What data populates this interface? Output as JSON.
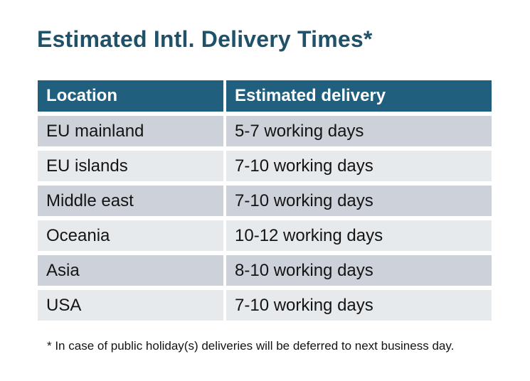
{
  "page": {
    "title": "Estimated Intl. Delivery Times*",
    "footnote": "* In case of public holiday(s) deliveries will be deferred to next business day."
  },
  "table": {
    "headers": [
      "Location",
      "Estimated delivery"
    ],
    "rows": [
      {
        "location": "EU mainland",
        "delivery": "5-7 working days"
      },
      {
        "location": "EU islands",
        "delivery": "7-10 working days"
      },
      {
        "location": "Middle east",
        "delivery": "7-10 working days"
      },
      {
        "location": "Oceania",
        "delivery": "10-12 working days"
      },
      {
        "location": "Asia",
        "delivery": "8-10 working days"
      },
      {
        "location": "USA",
        "delivery": "7-10 working days"
      }
    ]
  },
  "colors": {
    "background": "#FFFFFF",
    "title": "#1F5268",
    "header_bg": "#215F7E",
    "header_text": "#FFFFFF",
    "row_odd_bg": "#CDD1D9",
    "row_even_bg": "#E7EAED",
    "body_text": "#141414"
  }
}
